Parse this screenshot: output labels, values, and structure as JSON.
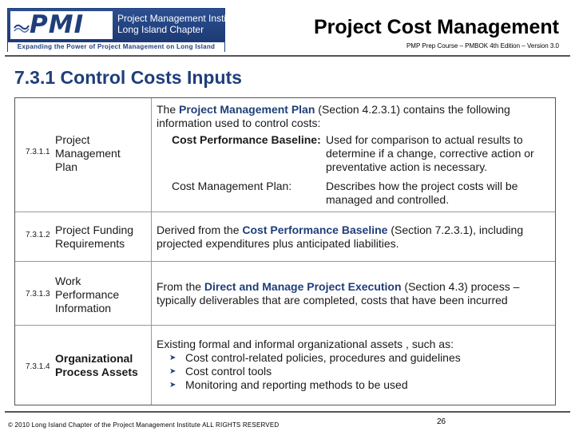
{
  "header": {
    "logo": {
      "mark": "PMI",
      "org_line1": "Project Management Institute",
      "org_line2": "Long Island Chapter",
      "tagline": "Expanding the Power of Project Management on Long Island"
    },
    "deck_title": "Project Cost Management",
    "deck_subtitle": "PMP Prep Course – PMBOK 4th Edition – Version 3.0"
  },
  "slide_title": "7.3.1 Control Costs Inputs",
  "rows": [
    {
      "id": "7.3.1.1",
      "name": "Project Management Plan",
      "intro_pre": "The ",
      "intro_hl": "Project Management Plan",
      "intro_post": " (Section 4.2.3.1) contains the following information used to control costs:",
      "sub": [
        {
          "term": "Cost Performance Baseline:",
          "desc": "Used for comparison to actual results to determine if a change, corrective action or preventative action is necessary."
        },
        {
          "term": "Cost Management Plan:",
          "desc": "Describes how the project costs will be managed and controlled."
        }
      ]
    },
    {
      "id": "7.3.1.2",
      "name": "Project Funding Requirements",
      "desc_pre": "Derived from the ",
      "desc_hl": "Cost Performance Baseline",
      "desc_post": " (Section 7.2.3.1), including projected expenditures plus anticipated liabilities."
    },
    {
      "id": "7.3.1.3",
      "name": "Work Performance Information",
      "desc_pre": "From the ",
      "desc_hl": "Direct and Manage Project Execution",
      "desc_post": " (Section 4.3) process – typically deliverables that are completed, costs that have been incurred"
    },
    {
      "id": "7.3.1.4",
      "name": "Organizational Process Assets",
      "desc_intro": "Existing formal and informal organizational assets , such as:",
      "bullets": [
        "Cost control-related policies, procedures and guidelines",
        "Cost control tools",
        "Monitoring and reporting methods to be used"
      ]
    }
  ],
  "footer": {
    "copyright": "© 2010 Long Island Chapter of the Project Management Institute  ALL RIGHTS RESERVED",
    "page_number": "26"
  },
  "icons": {
    "bullet": "arrowhead-bullet-icon",
    "logo_wave": "wave-icon"
  },
  "colors": {
    "brand_blue": "#1f3e7a",
    "rule_gray": "#555555"
  }
}
